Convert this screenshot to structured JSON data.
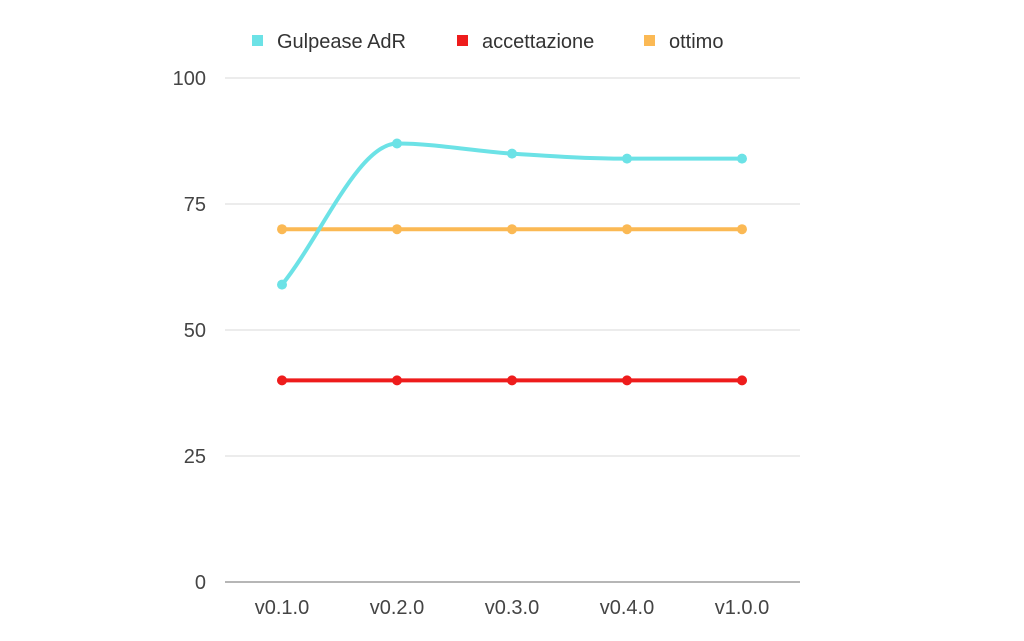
{
  "chart_data": {
    "type": "line",
    "title": "",
    "xlabel": "",
    "ylabel": "",
    "categories": [
      "v0.1.0",
      "v0.2.0",
      "v0.3.0",
      "v0.4.0",
      "v1.0.0"
    ],
    "ylim": [
      0,
      100
    ],
    "yticks": [
      0,
      25,
      50,
      75,
      100
    ],
    "grid": true,
    "legend_position": "top",
    "series": [
      {
        "name": "Gulpease AdR",
        "color": "#6ce2e6",
        "smooth": true,
        "values": [
          59,
          87,
          85,
          84,
          84
        ]
      },
      {
        "name": "accettazione",
        "color": "#ee1c1c",
        "smooth": false,
        "values": [
          40,
          40,
          40,
          40,
          40
        ]
      },
      {
        "name": "ottimo",
        "color": "#fbb954",
        "smooth": false,
        "values": [
          70,
          70,
          70,
          70,
          70
        ]
      }
    ]
  }
}
